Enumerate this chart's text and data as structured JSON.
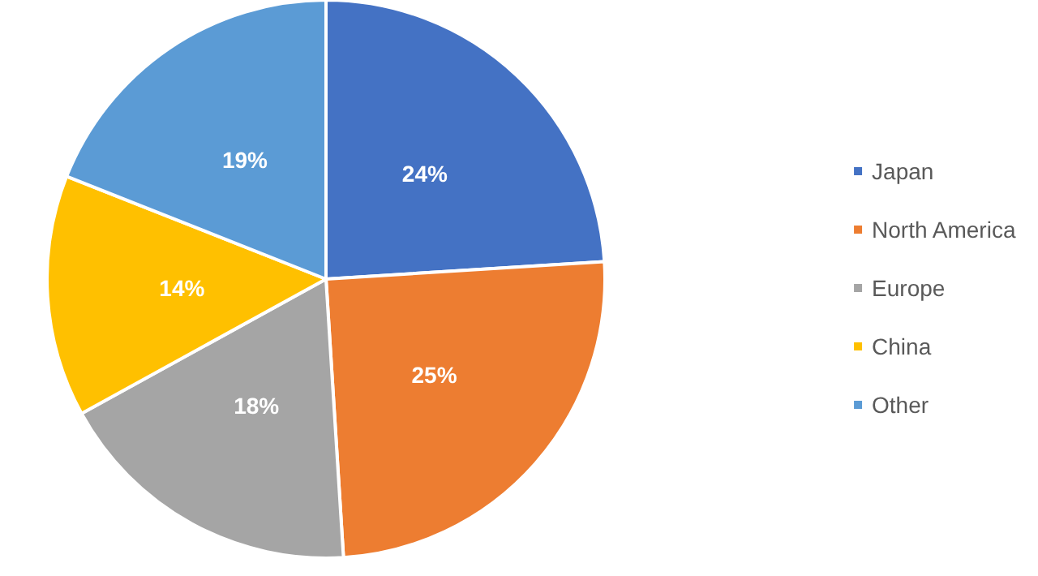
{
  "chart_data": {
    "type": "pie",
    "categories": [
      "Japan",
      "North America",
      "Europe",
      "China",
      "Other"
    ],
    "values": [
      24,
      25,
      18,
      14,
      19
    ],
    "colors": [
      "#4472c4",
      "#ed7d31",
      "#a5a5a5",
      "#ffc000",
      "#5b9bd5"
    ],
    "value_labels": [
      "24%",
      "25%",
      "18%",
      "14%",
      "19%"
    ],
    "legend": "right"
  }
}
